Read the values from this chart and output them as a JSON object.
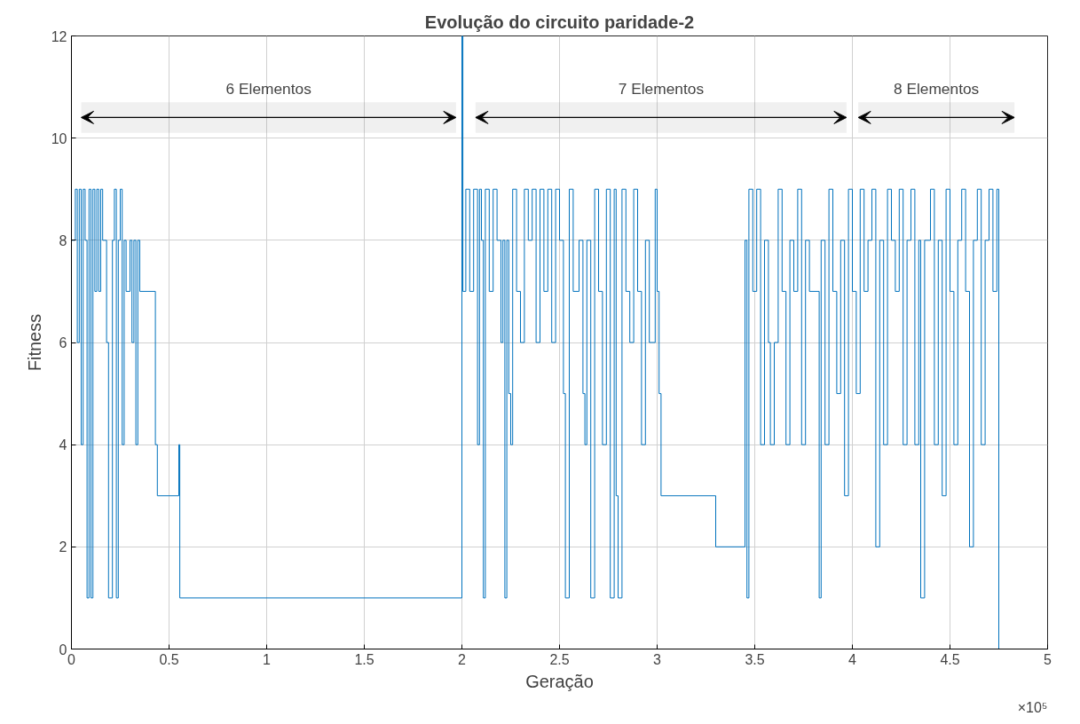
{
  "chart_data": {
    "type": "step",
    "title": "Evolução do circuito paridade-2",
    "xlabel": "Geração",
    "ylabel": "Fitness",
    "x": [
      0,
      0.02,
      0.03,
      0.04,
      0.05,
      0.06,
      0.07,
      0.08,
      0.09,
      0.1,
      0.11,
      0.12,
      0.13,
      0.14,
      0.15,
      0.16,
      0.18,
      0.19,
      0.21,
      0.22,
      0.23,
      0.24,
      0.25,
      0.26,
      0.27,
      0.28,
      0.3,
      0.31,
      0.32,
      0.33,
      0.34,
      0.35,
      0.43,
      0.44,
      0.55,
      0.555,
      2.0,
      2.005,
      2.02,
      2.04,
      2.06,
      2.08,
      2.09,
      2.1,
      2.11,
      2.12,
      2.14,
      2.16,
      2.18,
      2.2,
      2.21,
      2.22,
      2.23,
      2.24,
      2.25,
      2.26,
      2.28,
      2.3,
      2.32,
      2.34,
      2.36,
      2.38,
      2.4,
      2.42,
      2.44,
      2.46,
      2.48,
      2.5,
      2.52,
      2.53,
      2.55,
      2.57,
      2.6,
      2.62,
      2.63,
      2.64,
      2.66,
      2.68,
      2.7,
      2.72,
      2.74,
      2.76,
      2.78,
      2.79,
      2.8,
      2.82,
      2.84,
      2.86,
      2.88,
      2.9,
      2.92,
      2.94,
      2.96,
      2.99,
      3.0,
      3.01,
      3.02,
      3.3,
      3.45,
      3.46,
      3.47,
      3.49,
      3.51,
      3.53,
      3.55,
      3.57,
      3.58,
      3.6,
      3.62,
      3.64,
      3.66,
      3.68,
      3.7,
      3.72,
      3.74,
      3.76,
      3.78,
      3.83,
      3.84,
      3.86,
      3.88,
      3.9,
      3.92,
      3.94,
      3.96,
      3.98,
      4.0,
      4.02,
      4.04,
      4.06,
      4.08,
      4.1,
      4.12,
      4.14,
      4.16,
      4.18,
      4.2,
      4.22,
      4.24,
      4.26,
      4.28,
      4.3,
      4.32,
      4.34,
      4.35,
      4.37,
      4.4,
      4.42,
      4.44,
      4.46,
      4.48,
      4.5,
      4.52,
      4.54,
      4.56,
      4.58,
      4.6,
      4.62,
      4.64,
      4.66,
      4.68,
      4.7,
      4.72,
      4.74,
      4.75
    ],
    "series": [
      {
        "color": "#0072bd",
        "values": [
          8,
          9,
          6,
          9,
          4,
          9,
          8,
          1,
          9,
          1,
          9,
          7,
          9,
          7,
          9,
          8,
          6,
          1,
          8,
          9,
          1,
          8,
          9,
          4,
          8,
          7,
          8,
          6,
          8,
          4,
          8,
          7,
          4,
          3,
          4,
          1,
          12,
          7,
          9,
          7,
          9,
          4,
          9,
          8,
          1,
          9,
          7,
          9,
          8,
          6,
          8,
          1,
          8,
          5,
          4,
          9,
          7,
          6,
          9,
          8,
          9,
          6,
          9,
          7,
          9,
          6,
          9,
          8,
          5,
          1,
          9,
          7,
          8,
          5,
          4,
          8,
          1,
          9,
          7,
          4,
          9,
          1,
          9,
          3,
          1,
          9,
          7,
          6,
          9,
          7,
          4,
          8,
          6,
          9,
          7,
          5,
          3,
          2,
          8,
          1,
          9,
          7,
          9,
          4,
          8,
          6,
          4,
          6,
          9,
          7,
          4,
          8,
          7,
          9,
          4,
          8,
          7,
          1,
          8,
          4,
          9,
          7,
          5,
          8,
          3,
          9,
          7,
          5,
          9,
          7,
          8,
          9,
          2,
          8,
          4,
          9,
          8,
          7,
          9,
          4,
          8,
          9,
          4,
          8,
          1,
          8,
          9,
          4,
          8,
          3,
          9,
          7,
          4,
          8,
          9,
          7,
          2,
          8,
          9,
          4,
          8,
          9,
          7,
          9,
          0
        ]
      }
    ],
    "xlim": [
      0,
      5
    ],
    "ylim": [
      0,
      12
    ],
    "xticks": [
      0,
      0.5,
      1,
      1.5,
      2,
      2.5,
      3,
      3.5,
      4,
      4.5,
      5
    ],
    "yticks": [
      0,
      2,
      4,
      6,
      8,
      10,
      12
    ],
    "grid": true,
    "bands": [
      {
        "axis": "x",
        "from": 0.05,
        "to": 1.97,
        "label": "6 Elementos"
      },
      {
        "axis": "x",
        "from": 2.07,
        "to": 3.97,
        "label": "7 Elementos"
      },
      {
        "axis": "x",
        "from": 4.03,
        "to": 4.83,
        "label": "8 Elementos"
      }
    ],
    "annotations": [
      "×10⁵"
    ]
  }
}
